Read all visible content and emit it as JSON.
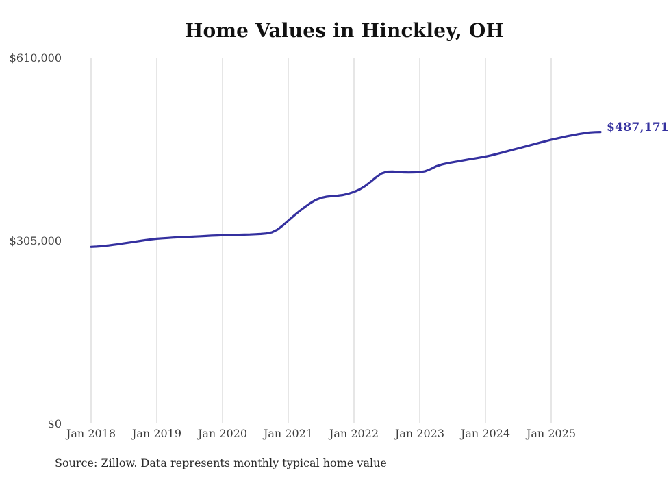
{
  "title": "Home Values in Hinckley, OH",
  "source_note": "Source: Zillow. Data represents monthly typical home value",
  "end_label": "$487,171",
  "colors": {
    "line": "#34309f",
    "grid": "#cccccc",
    "title": "#111111",
    "axis_label": "#3d3d3d",
    "end_label": "#34309f",
    "source": "#2b2b2b",
    "background": "#ffffff"
  },
  "chart_data": {
    "type": "line",
    "title": "Home Values in Hinckley, OH",
    "x_start": "2018-01",
    "x_end": "2025-10",
    "frequency": "monthly",
    "x_tick_labels": [
      "Jan 2018",
      "Jan 2019",
      "Jan 2020",
      "Jan 2021",
      "Jan 2022",
      "Jan 2023",
      "Jan 2024",
      "Jan 2025"
    ],
    "y_tick_labels": {
      "zero": "$0",
      "mid": "$305,000",
      "top": "$610,000"
    },
    "y_ticks": [
      0,
      305000,
      610000
    ],
    "ylim": [
      0,
      610000
    ],
    "grid": "vertical-only",
    "legend": "none",
    "end_point_label": "$487,171",
    "end_point_value": 487171,
    "values": [
      295800,
      296300,
      297000,
      298000,
      299200,
      300400,
      301700,
      303100,
      304500,
      305900,
      307200,
      308400,
      309400,
      310100,
      310700,
      311300,
      311800,
      312200,
      312600,
      313000,
      313500,
      314000,
      314500,
      314900,
      315200,
      315500,
      315800,
      316000,
      316200,
      316500,
      316900,
      317400,
      318200,
      320000,
      324500,
      331500,
      339500,
      347500,
      355000,
      362000,
      368500,
      374000,
      377500,
      379500,
      380500,
      381200,
      382300,
      384500,
      387500,
      391500,
      397000,
      404000,
      411500,
      418000,
      421000,
      421300,
      420700,
      420000,
      419800,
      420000,
      420300,
      421800,
      425500,
      430000,
      433000,
      435000,
      436800,
      438400,
      440000,
      441500,
      443000,
      444600,
      446200,
      448200,
      450400,
      452700,
      455100,
      457500,
      459900,
      462300,
      464700,
      467100,
      469500,
      471900,
      474300,
      476300,
      478300,
      480200,
      482000,
      483700,
      485200,
      486400,
      487000,
      487171
    ]
  }
}
